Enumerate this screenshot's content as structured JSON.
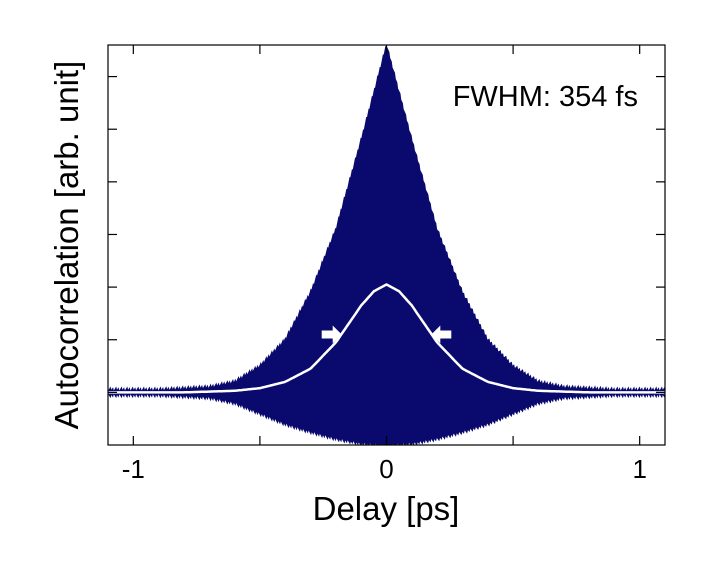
{
  "chart_data": {
    "type": "line",
    "title": "",
    "xlabel": "Delay [ps]",
    "ylabel": "Autocorrelation [arb. unit]",
    "xlim": [
      -1.1,
      1.1
    ],
    "ylim": [
      0,
      7.6
    ],
    "grid": false,
    "x_ticks": [
      -1,
      0,
      1
    ],
    "x_tick_labels": [
      "-1",
      "0",
      "1"
    ],
    "y_ticks": [
      1,
      2,
      3,
      4,
      5,
      6,
      7
    ],
    "y_tick_labels": [
      "",
      "",
      "",
      "",
      "",
      "",
      ""
    ],
    "annotation": "FWHM: 354 fs",
    "colors": {
      "envelope": "#0a0a6e",
      "intensity_trace": "#ffffff",
      "arrows": "#ffffff"
    },
    "series": [
      {
        "role": "interferometric-envelope-upper",
        "x": [
          -1.1,
          -0.9,
          -0.7,
          -0.6,
          -0.5,
          -0.4,
          -0.3,
          -0.2,
          -0.1,
          0.0,
          0.1,
          0.2,
          0.3,
          0.4,
          0.5,
          0.6,
          0.7,
          0.9,
          1.1
        ],
        "values": [
          1.05,
          1.05,
          1.1,
          1.2,
          1.5,
          2.0,
          2.9,
          4.1,
          5.8,
          7.6,
          5.8,
          4.1,
          2.9,
          2.0,
          1.5,
          1.2,
          1.1,
          1.05,
          1.05
        ]
      },
      {
        "role": "interferometric-envelope-lower",
        "x": [
          -1.1,
          -0.9,
          -0.7,
          -0.6,
          -0.5,
          -0.4,
          -0.3,
          -0.2,
          -0.1,
          0.0,
          0.1,
          0.2,
          0.3,
          0.4,
          0.5,
          0.6,
          0.7,
          0.9,
          1.1
        ],
        "values": [
          0.95,
          0.95,
          0.9,
          0.8,
          0.6,
          0.4,
          0.25,
          0.12,
          0.03,
          0.0,
          0.03,
          0.12,
          0.25,
          0.4,
          0.6,
          0.8,
          0.9,
          0.95,
          0.95
        ]
      },
      {
        "role": "intensity-autocorrelation",
        "x": [
          -1.1,
          -0.8,
          -0.6,
          -0.5,
          -0.4,
          -0.3,
          -0.2,
          -0.15,
          -0.1,
          -0.05,
          0.0,
          0.05,
          0.1,
          0.15,
          0.2,
          0.3,
          0.4,
          0.5,
          0.6,
          0.8,
          1.1
        ],
        "values": [
          1.0,
          1.0,
          1.03,
          1.08,
          1.2,
          1.45,
          1.95,
          2.3,
          2.65,
          2.92,
          3.05,
          2.92,
          2.65,
          2.3,
          1.95,
          1.45,
          1.2,
          1.08,
          1.03,
          1.0,
          1.0
        ]
      }
    ],
    "fwhm_arrows": {
      "left_x": -0.177,
      "right_x": 0.177,
      "y": 2.1
    }
  }
}
